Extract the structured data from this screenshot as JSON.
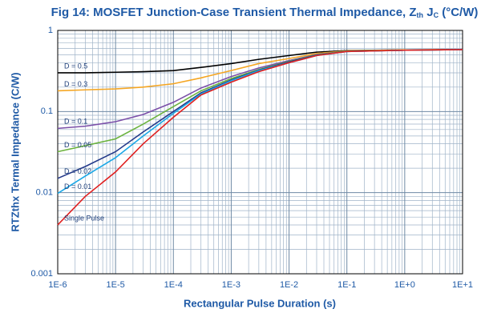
{
  "chart_data": {
    "type": "line",
    "title": [
      "Fig 14: MOSFET Junction-Case Transient Thermal Impedance, Z",
      "th",
      " J",
      "C",
      " (°C/W)"
    ],
    "x_label": "Rectangular Pulse Duration (s)",
    "y_label": "RTZthx Termal Impedance (C/W)",
    "x": [
      1e-06,
      3e-06,
      1e-05,
      3e-05,
      0.0001,
      0.0003,
      0.001,
      0.003,
      0.01,
      0.03,
      0.1,
      1,
      10
    ],
    "series": [
      {
        "name": "D = 0.5",
        "color": "#000000",
        "values": [
          0.3,
          0.3,
          0.305,
          0.31,
          0.32,
          0.35,
          0.39,
          0.44,
          0.49,
          0.54,
          0.565,
          0.575,
          0.58
        ]
      },
      {
        "name": "D = 0.3",
        "color": "#f5a623",
        "values": [
          0.18,
          0.185,
          0.19,
          0.2,
          0.22,
          0.26,
          0.32,
          0.39,
          0.45,
          0.52,
          0.56,
          0.575,
          0.58
        ]
      },
      {
        "name": "D = 0.1",
        "color": "#7b4fa8",
        "values": [
          0.062,
          0.066,
          0.075,
          0.092,
          0.13,
          0.195,
          0.27,
          0.345,
          0.425,
          0.505,
          0.555,
          0.57,
          0.58
        ]
      },
      {
        "name": "D = 0.05",
        "color": "#6cb33f",
        "values": [
          0.032,
          0.038,
          0.046,
          0.07,
          0.115,
          0.18,
          0.255,
          0.33,
          0.415,
          0.5,
          0.555,
          0.57,
          0.58
        ]
      },
      {
        "name": "D = 0.02",
        "color": "#243a8a",
        "values": [
          0.015,
          0.021,
          0.032,
          0.056,
          0.1,
          0.17,
          0.245,
          0.325,
          0.41,
          0.495,
          0.55,
          0.57,
          0.58
        ]
      },
      {
        "name": "D = 0.01",
        "color": "#1aa7e6",
        "values": [
          0.0098,
          0.016,
          0.027,
          0.05,
          0.095,
          0.165,
          0.24,
          0.32,
          0.4,
          0.49,
          0.55,
          0.57,
          0.58
        ]
      },
      {
        "name": "Single Pulse",
        "color": "#e02020",
        "values": [
          0.004,
          0.009,
          0.018,
          0.04,
          0.085,
          0.16,
          0.23,
          0.31,
          0.4,
          0.49,
          0.55,
          0.57,
          0.58
        ]
      }
    ],
    "xlog": true,
    "ylog": true,
    "xlim": [
      1e-06,
      10
    ],
    "ylim": [
      0.001,
      1
    ],
    "xticks": [
      {
        "value": 1e-06,
        "label": "1E-6"
      },
      {
        "value": 1e-05,
        "label": "1E-5"
      },
      {
        "value": 0.0001,
        "label": "1E-4"
      },
      {
        "value": 0.001,
        "label": "1E-3"
      },
      {
        "value": 0.01,
        "label": "1E-2"
      },
      {
        "value": 0.1,
        "label": "1E-1"
      },
      {
        "value": 1,
        "label": "1E+0"
      },
      {
        "value": 10,
        "label": "1E+1"
      }
    ],
    "yticks": [
      0.001,
      0.01,
      0.1,
      1
    ],
    "grid": true
  }
}
